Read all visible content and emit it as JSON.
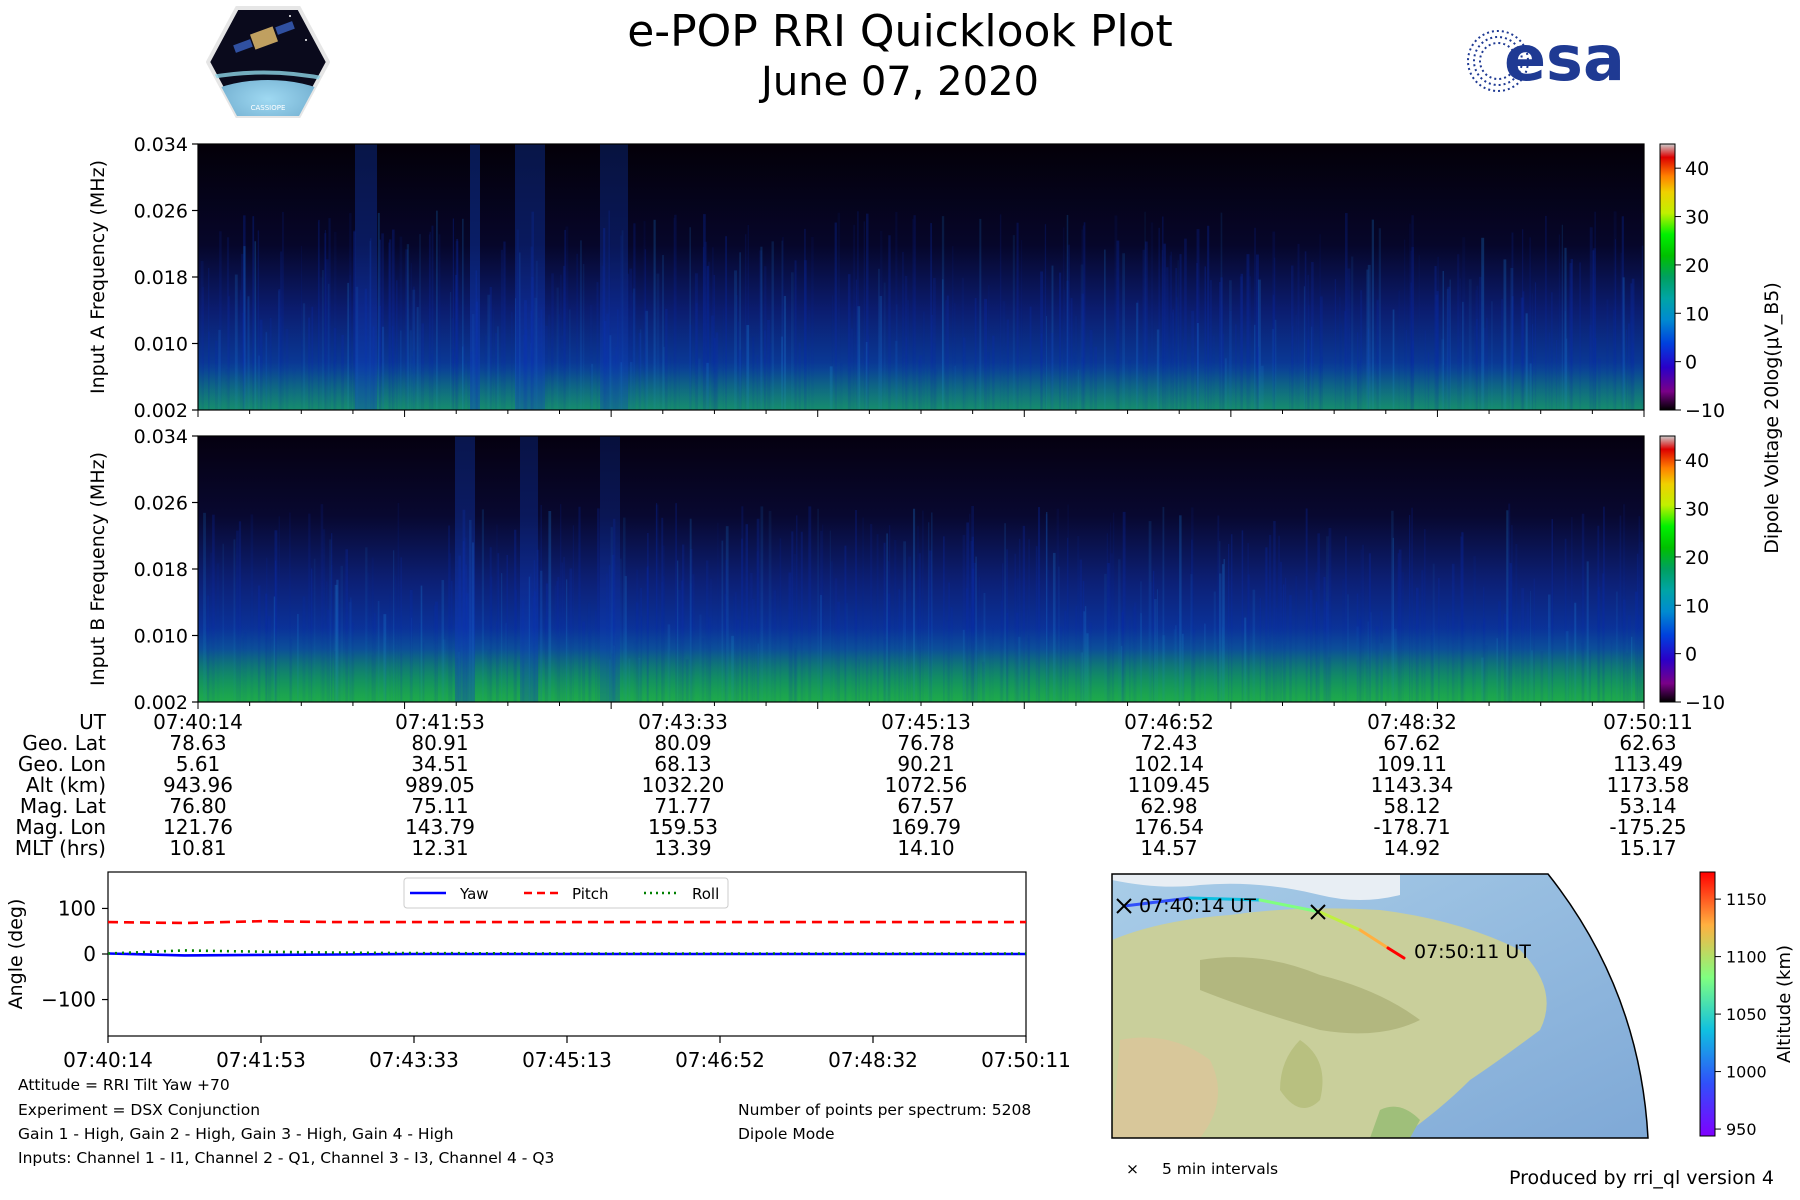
{
  "header": {
    "title": "e-POP RRI Quicklook Plot",
    "date": "June 07, 2020",
    "left_logo": "cassiope-mission-logo",
    "left_logo_text": "CASSIOPE",
    "right_logo_text": "esa"
  },
  "colors": {
    "background": "#ffffff",
    "esa_blue": "#1f3a93",
    "yaw": "#0000ff",
    "pitch": "#ff0000",
    "roll": "#008000"
  },
  "chart_data": [
    {
      "type": "heatmap",
      "name": "input-a-spectrogram",
      "ylabel": "Input A Frequency (MHz)",
      "yticks": [
        "0.034",
        "0.026",
        "0.018",
        "0.010",
        "0.002"
      ],
      "ylim": [
        0.002,
        0.034
      ],
      "x_time_range": [
        "07:40:14",
        "07:50:11"
      ],
      "colorbar": {
        "label": "Dipole Voltage 20log(μV_B5)",
        "ticks": [
          "40",
          "30",
          "20",
          "10",
          "0",
          "−10"
        ],
        "range": [
          -10,
          45
        ],
        "colormap": "nipy_spectral"
      }
    },
    {
      "type": "heatmap",
      "name": "input-b-spectrogram",
      "ylabel": "Input B Frequency (MHz)",
      "yticks": [
        "0.034",
        "0.026",
        "0.018",
        "0.010",
        "0.002"
      ],
      "ylim": [
        0.002,
        0.034
      ],
      "x_time_range": [
        "07:40:14",
        "07:50:11"
      ],
      "colorbar": {
        "ticks": [
          "40",
          "30",
          "20",
          "10",
          "0",
          "−10"
        ],
        "range": [
          -10,
          45
        ],
        "colormap": "nipy_spectral"
      }
    },
    {
      "type": "table",
      "name": "ephemeris-table",
      "row_labels": [
        "UT",
        "Geo. Lat",
        "Geo. Lon",
        "Alt (km)",
        "Mag. Lat",
        "Mag. Lon",
        "MLT (hrs)"
      ],
      "columns": [
        [
          "07:40:14",
          "78.63",
          "5.61",
          "943.96",
          "76.80",
          "121.76",
          "10.81"
        ],
        [
          "07:41:53",
          "80.91",
          "34.51",
          "989.05",
          "75.11",
          "143.79",
          "12.31"
        ],
        [
          "07:43:33",
          "80.09",
          "68.13",
          "1032.20",
          "71.77",
          "159.53",
          "13.39"
        ],
        [
          "07:45:13",
          "76.78",
          "90.21",
          "1072.56",
          "67.57",
          "169.79",
          "14.10"
        ],
        [
          "07:46:52",
          "72.43",
          "102.14",
          "1109.45",
          "62.98",
          "176.54",
          "14.57"
        ],
        [
          "07:48:32",
          "67.62",
          "109.11",
          "1143.34",
          "58.12",
          "-178.71",
          "14.92"
        ],
        [
          "07:50:11",
          "62.63",
          "113.49",
          "1173.58",
          "53.14",
          "-175.25",
          "15.17"
        ]
      ]
    },
    {
      "type": "line",
      "name": "attitude-plot",
      "ylabel": "Angle (deg)",
      "yticks": [
        "100",
        "0",
        "−100"
      ],
      "ylim": [
        -180,
        180
      ],
      "xticks": [
        "07:40:14",
        "07:41:53",
        "07:43:33",
        "07:45:13",
        "07:46:52",
        "07:48:32",
        "07:50:11"
      ],
      "legend": [
        "Yaw",
        "Pitch",
        "Roll"
      ],
      "legend_position": "top-center",
      "x": [
        0,
        0.5,
        1,
        1.5,
        2,
        3,
        4,
        5,
        6
      ],
      "series": [
        {
          "name": "Yaw",
          "style": "solid",
          "values": [
            1,
            -3,
            -2,
            -1,
            0,
            0,
            0,
            0,
            0
          ]
        },
        {
          "name": "Pitch",
          "style": "dashed",
          "values": [
            70,
            68,
            72,
            70,
            70,
            70,
            70,
            70,
            70
          ]
        },
        {
          "name": "Roll",
          "style": "dotted",
          "values": [
            1,
            8,
            5,
            3,
            2,
            1,
            1,
            1,
            1
          ]
        }
      ]
    },
    {
      "type": "scatter",
      "name": "orbit-map",
      "start_label": "07:40:14 UT",
      "end_label": "07:50:11 UT",
      "colorbar": {
        "label": "Altitude (km)",
        "ticks": [
          "1150",
          "1100",
          "1050",
          "1000",
          "950"
        ],
        "range": [
          943.96,
          1173.58
        ],
        "colormap": "rainbow"
      },
      "legend": "5 min intervals"
    }
  ],
  "footer": {
    "attitude": "Attitude = RRI Tilt Yaw +70",
    "experiment": "Experiment = DSX Conjunction",
    "gains": "Gain 1 - High, Gain 2 - High, Gain 3 - High, Gain 4 - High",
    "inputs": "Inputs: Channel 1 - I1, Channel 2 - Q1, Channel 3 - I3, Channel 4 - Q3",
    "points": "Number of points per spectrum: 5208",
    "mode": "Dipole Mode",
    "produced": "Produced by rri_ql version 4"
  }
}
